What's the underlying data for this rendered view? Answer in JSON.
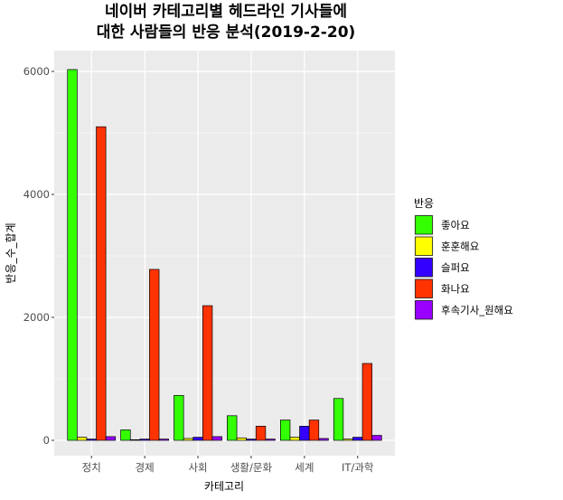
{
  "chart_data": {
    "type": "bar",
    "title_line1": "네이버 카테고리별 헤드라인 기사들에",
    "title_line2": "대한 사람들의 반응 분석(2019-2-20)",
    "xlabel": "카테고리",
    "ylabel": "반응_수_합계",
    "categories": [
      "정치",
      "경제",
      "사회",
      "생활/문화",
      "세계",
      "IT/과학"
    ],
    "ylim": [
      0,
      6300
    ],
    "yticks": [
      0,
      2000,
      4000,
      6000
    ],
    "grid": true,
    "legend": {
      "title": "반응",
      "placement": "right"
    },
    "series": [
      {
        "name": "좋아요",
        "color": "#33ff00",
        "values": [
          6030,
          170,
          730,
          400,
          330,
          680
        ]
      },
      {
        "name": "훈훈해요",
        "color": "#ffff00",
        "values": [
          50,
          10,
          30,
          40,
          50,
          20
        ]
      },
      {
        "name": "슬퍼요",
        "color": "#3300ff",
        "values": [
          20,
          20,
          50,
          20,
          230,
          50
        ]
      },
      {
        "name": "화나요",
        "color": "#ff3300",
        "values": [
          5100,
          2780,
          2190,
          230,
          330,
          1250
        ]
      },
      {
        "name": "후속기사_원해요",
        "color": "#9900ff",
        "values": [
          60,
          20,
          60,
          20,
          30,
          80
        ]
      }
    ]
  }
}
